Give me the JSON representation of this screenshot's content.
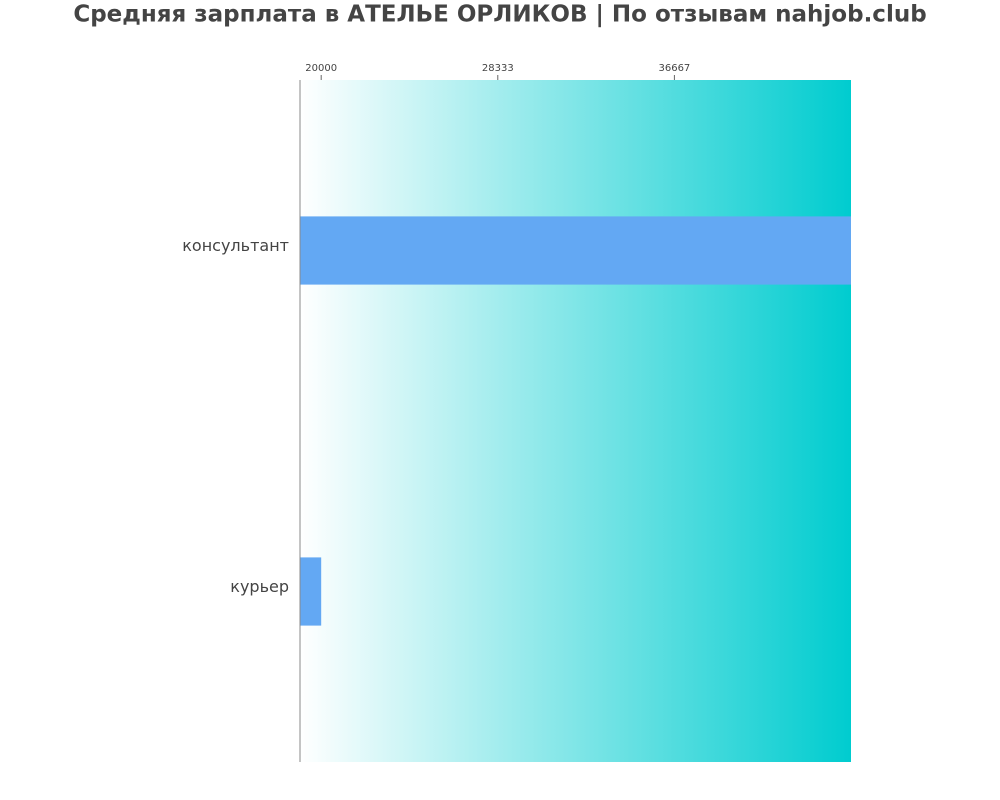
{
  "chart_data": {
    "type": "barh",
    "title": "Средняя зарплата в АТЕЛЬЕ ОРЛИКОВ | По отзывам nahjob.club",
    "categories": [
      "консультант",
      "курьер"
    ],
    "values": [
      45000,
      20000
    ],
    "color": "#63a8f3",
    "xlim": [
      19000,
      45000
    ],
    "xticks": [
      20000,
      28333,
      36667
    ],
    "background_gradient": [
      "#ffffff",
      "#00cccf"
    ]
  }
}
